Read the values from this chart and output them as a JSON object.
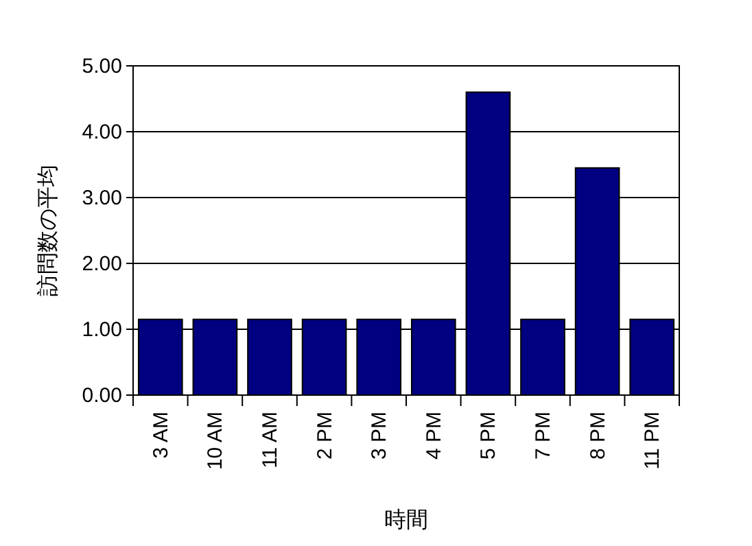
{
  "chart_data": {
    "type": "bar",
    "xlabel": "時間",
    "ylabel": "訪問数の平均",
    "categories": [
      "3 AM",
      "10 AM",
      "11 AM",
      "2 PM",
      "3 PM",
      "4 PM",
      "5 PM",
      "7 PM",
      "8 PM",
      "11 PM"
    ],
    "values": [
      1.15,
      1.15,
      1.15,
      1.15,
      1.15,
      1.15,
      4.6,
      1.15,
      3.45,
      1.15
    ],
    "color": "#000080",
    "ylim": [
      0,
      5
    ],
    "yticks": [
      {
        "value": 0,
        "label": "0.00"
      },
      {
        "value": 1,
        "label": "1.00"
      },
      {
        "value": 2,
        "label": "2.00"
      },
      {
        "value": 3,
        "label": "3.00"
      },
      {
        "value": 4,
        "label": "4.00"
      },
      {
        "value": 5,
        "label": "5.00"
      }
    ],
    "grid": "y"
  }
}
